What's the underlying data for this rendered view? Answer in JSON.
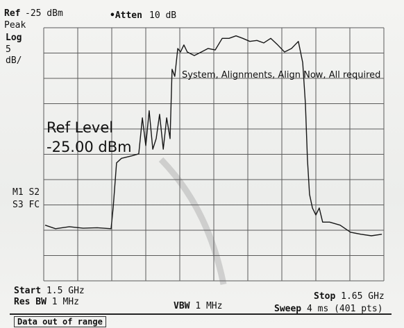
{
  "header": {
    "ref_label": "Ref",
    "ref_value": "-25 dBm",
    "atten_label": "•Atten",
    "atten_value": "10 dB"
  },
  "sidebar": {
    "detector": "Peak",
    "scale": "Log",
    "scale_value": "5",
    "scale_unit": "dB/",
    "markers_1": "M1 S2",
    "markers_2": "S3 FC"
  },
  "messages": {
    "alignment": "System, Alignments, Align Now, All required",
    "ref_level_title": "Ref Level",
    "ref_level_value": "-25.00 dBm",
    "status": "Data out of range"
  },
  "footer": {
    "start_label": "Start",
    "start_value": "1.5 GHz",
    "res_bw_label": "Res BW",
    "res_bw_value": "1 MHz",
    "vbw_label": "VBW",
    "vbw_value": "1 MHz",
    "stop_label": "Stop",
    "stop_value": "1.65 GHz",
    "sweep_label": "Sweep",
    "sweep_value": "4 ms (401 pts)"
  },
  "chart_data": {
    "type": "line",
    "x": [
      1.5006,
      1.5052,
      1.5113,
      1.5174,
      1.5236,
      1.5297,
      1.5306,
      1.5321,
      1.5343,
      1.5389,
      1.5419,
      1.5435,
      1.545,
      1.5465,
      1.5481,
      1.5496,
      1.5511,
      1.5527,
      1.5542,
      1.5557,
      1.5566,
      1.5578,
      1.5591,
      1.5603,
      1.5618,
      1.5633,
      1.5664,
      1.5695,
      1.5725,
      1.5756,
      1.5787,
      1.5817,
      1.5848,
      1.5878,
      1.5909,
      1.594,
      1.597,
      1.6001,
      1.6032,
      1.6062,
      1.6093,
      1.6123,
      1.6142,
      1.6154,
      1.6163,
      1.6172,
      1.6185,
      1.62,
      1.6215,
      1.623,
      1.6261,
      1.6307,
      1.6353,
      1.6399,
      1.6445,
      1.6491
    ],
    "series": [
      {
        "color": "#161616",
        "values": [
          -64.0,
          -64.7,
          -64.3,
          -64.6,
          -64.5,
          -64.7,
          -60.6,
          -51.7,
          -50.8,
          -50.3,
          -49.9,
          -42.8,
          -48.3,
          -41.4,
          -49.0,
          -46.9,
          -42.1,
          -49.0,
          -42.8,
          -46.9,
          -33.2,
          -34.6,
          -29.1,
          -29.8,
          -28.4,
          -29.8,
          -30.5,
          -29.8,
          -29.1,
          -29.4,
          -27.1,
          -27.1,
          -26.6,
          -27.1,
          -27.7,
          -27.5,
          -28.0,
          -27.1,
          -28.4,
          -29.8,
          -29.1,
          -27.7,
          -31.9,
          -40.1,
          -51.0,
          -57.9,
          -60.6,
          -62.0,
          -60.6,
          -63.4,
          -63.4,
          -64.0,
          -65.4,
          -65.8,
          -66.1,
          -65.8
        ]
      }
    ],
    "xlim": [
      1.5,
      1.65
    ],
    "ylim": [
      -75,
      -25
    ],
    "xticks": [
      1.5,
      1.515,
      1.53,
      1.545,
      1.56,
      1.575,
      1.59,
      1.605,
      1.62,
      1.635,
      1.65
    ],
    "yticks": [
      -75,
      -70,
      -65,
      -60,
      -55,
      -50,
      -45,
      -40,
      -35,
      -30,
      -25
    ],
    "grid": true
  }
}
